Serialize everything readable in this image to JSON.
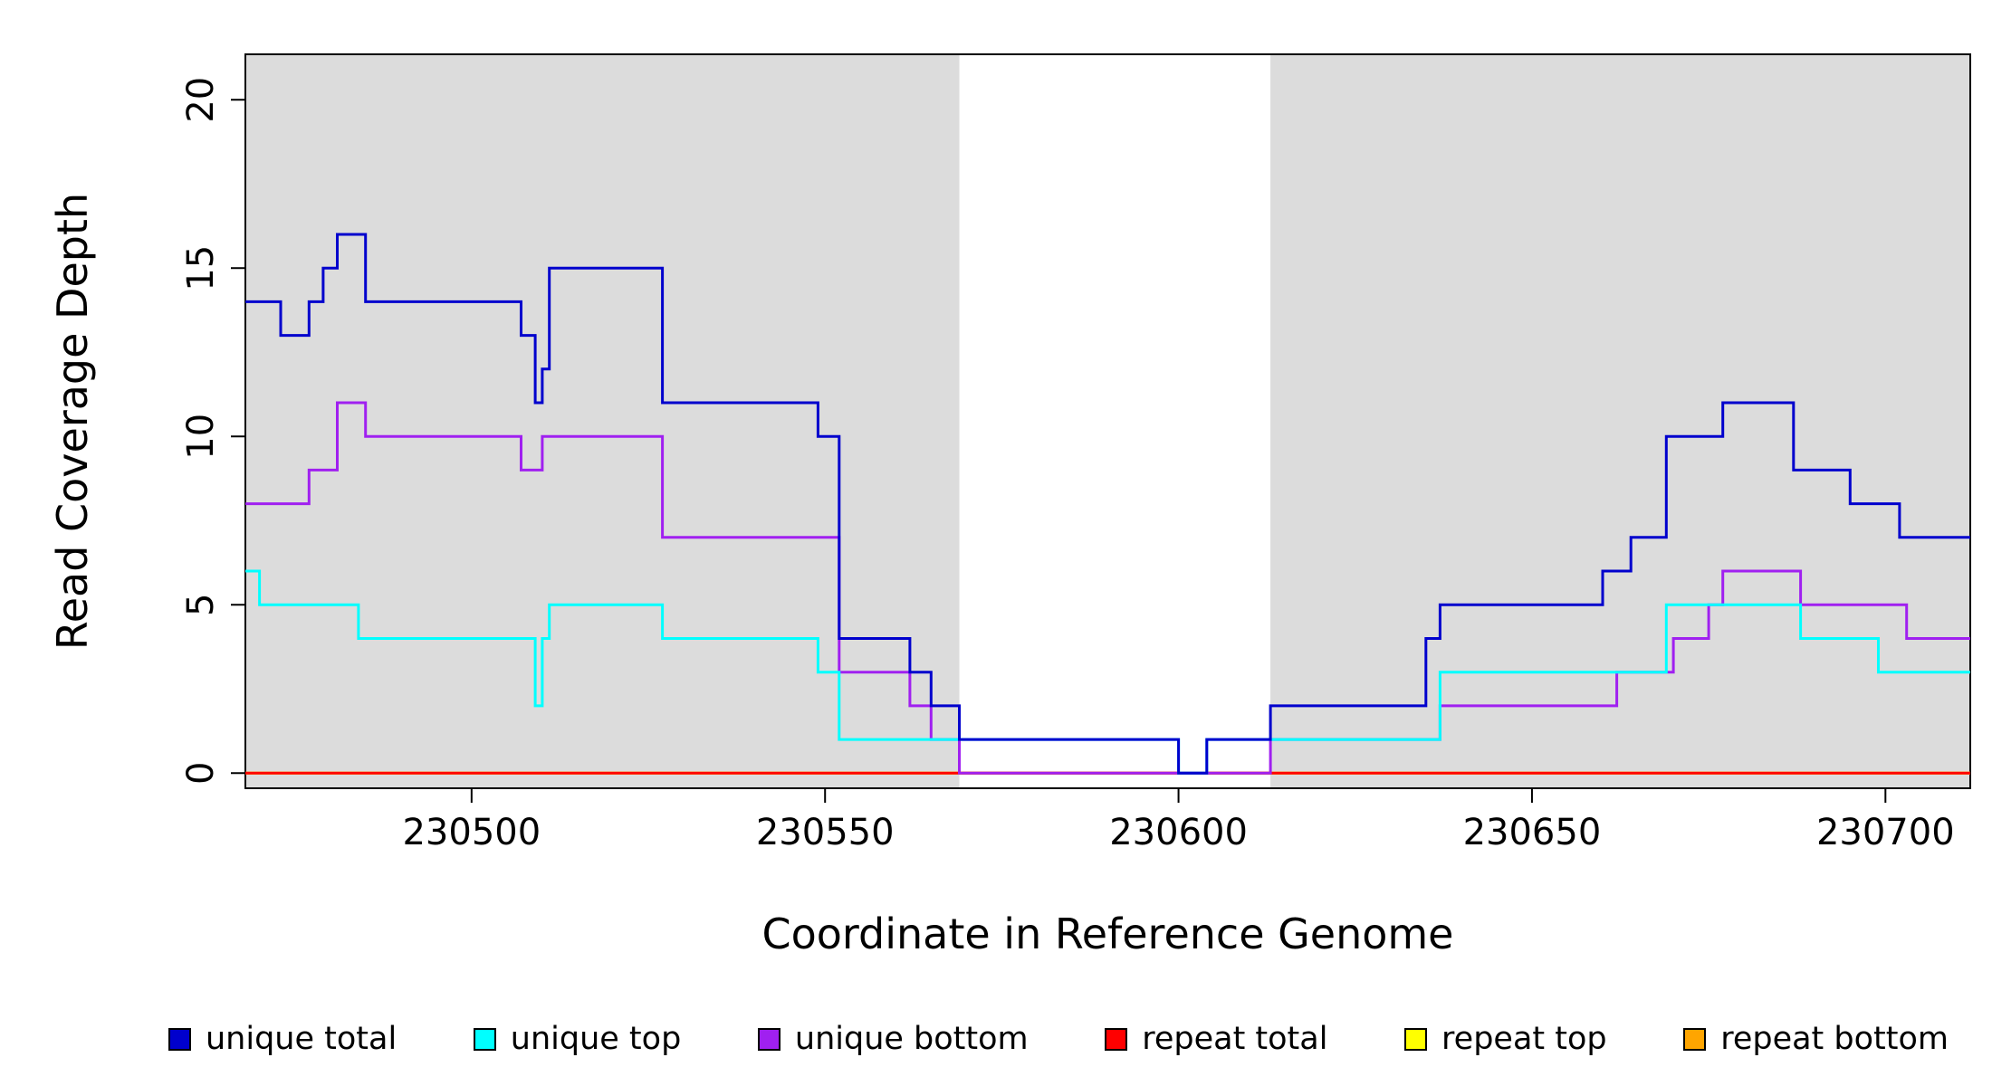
{
  "chart_data": {
    "type": "line",
    "step_style": "step-after",
    "title": "",
    "xlabel": "Coordinate in Reference Genome",
    "ylabel": "Read Coverage Depth",
    "xlim": [
      230468,
      230712
    ],
    "ylim": [
      -0.45,
      21.35
    ],
    "xticks": [
      230500,
      230550,
      230600,
      230650,
      230700
    ],
    "yticks": [
      0,
      5,
      10,
      15,
      20
    ],
    "grid": false,
    "legend_position": "bottom",
    "plot_background": "#ffffff",
    "axis_color": "#000000",
    "shaded_regions": [
      {
        "x0": 230468,
        "x1": 230569,
        "color": "#dcdcdc"
      },
      {
        "x0": 230613,
        "x1": 230712,
        "color": "#dcdcdc"
      }
    ],
    "series": [
      {
        "name": "unique total",
        "color": "#0000cd",
        "points": [
          [
            230468,
            14
          ],
          [
            230473,
            13
          ],
          [
            230477,
            14
          ],
          [
            230479,
            15
          ],
          [
            230481,
            16
          ],
          [
            230485,
            14
          ],
          [
            230507,
            13
          ],
          [
            230509,
            11
          ],
          [
            230510,
            12
          ],
          [
            230511,
            15
          ],
          [
            230527,
            11
          ],
          [
            230549,
            10
          ],
          [
            230552,
            4
          ],
          [
            230562,
            3
          ],
          [
            230565,
            2
          ],
          [
            230569,
            1
          ],
          [
            230600,
            0
          ],
          [
            230604,
            1
          ],
          [
            230613,
            2
          ],
          [
            230635,
            4
          ],
          [
            230637,
            5
          ],
          [
            230660,
            6
          ],
          [
            230664,
            7
          ],
          [
            230669,
            10
          ],
          [
            230677,
            11
          ],
          [
            230687,
            9
          ],
          [
            230695,
            8
          ],
          [
            230702,
            7
          ],
          [
            230712,
            7
          ]
        ]
      },
      {
        "name": "unique top",
        "color": "#00ffff",
        "points": [
          [
            230468,
            6
          ],
          [
            230470,
            5
          ],
          [
            230484,
            4
          ],
          [
            230509,
            2
          ],
          [
            230510,
            4
          ],
          [
            230511,
            5
          ],
          [
            230527,
            4
          ],
          [
            230549,
            3
          ],
          [
            230552,
            1
          ],
          [
            230600,
            0
          ],
          [
            230604,
            1
          ],
          [
            230637,
            3
          ],
          [
            230669,
            5
          ],
          [
            230688,
            4
          ],
          [
            230699,
            3
          ],
          [
            230712,
            3
          ]
        ]
      },
      {
        "name": "unique bottom",
        "color": "#a020f0",
        "points": [
          [
            230468,
            8
          ],
          [
            230477,
            9
          ],
          [
            230481,
            11
          ],
          [
            230485,
            10
          ],
          [
            230507,
            9
          ],
          [
            230510,
            10
          ],
          [
            230527,
            7
          ],
          [
            230552,
            3
          ],
          [
            230562,
            2
          ],
          [
            230565,
            1
          ],
          [
            230569,
            0
          ],
          [
            230613,
            1
          ],
          [
            230637,
            2
          ],
          [
            230662,
            3
          ],
          [
            230670,
            4
          ],
          [
            230675,
            5
          ],
          [
            230677,
            6
          ],
          [
            230688,
            5
          ],
          [
            230703,
            4
          ],
          [
            230712,
            4
          ]
        ]
      },
      {
        "name": "repeat total",
        "color": "#ff0000",
        "points": [
          [
            230468,
            0
          ],
          [
            230712,
            0
          ]
        ]
      },
      {
        "name": "repeat top",
        "color": "#ffff00",
        "points": [
          [
            230468,
            0
          ],
          [
            230712,
            0
          ]
        ]
      },
      {
        "name": "repeat bottom",
        "color": "#ffa500",
        "points": [
          [
            230468,
            0
          ],
          [
            230712,
            0
          ]
        ]
      }
    ]
  }
}
